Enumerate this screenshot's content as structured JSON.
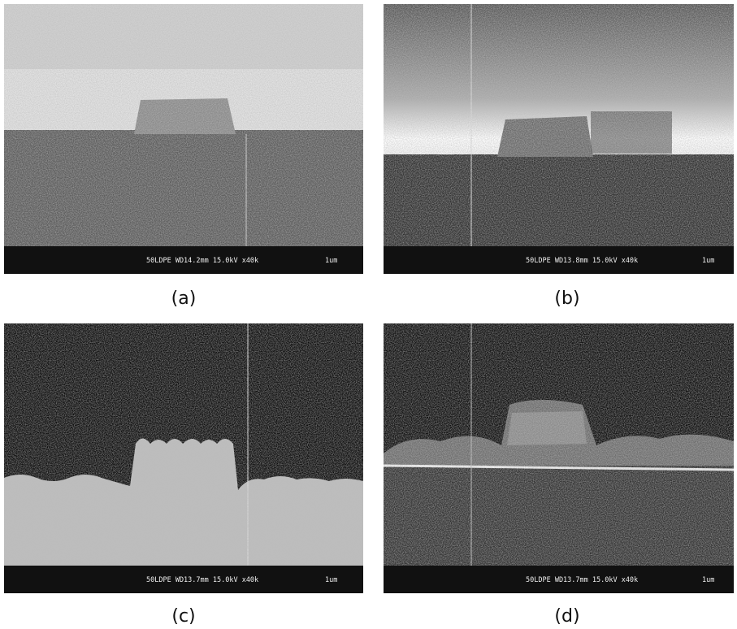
{
  "panels": [
    {
      "caption": "(a)",
      "info": "50LDPE WD14.2mm 15.0kV x40k",
      "scale": "1um"
    },
    {
      "caption": "(b)",
      "info": "50LDPE WD13.8mm 15.0kV x40k",
      "scale": "1um"
    },
    {
      "caption": "(c)",
      "info": "50LDPE WD13.7mm 15.0kV x40k",
      "scale": "1um"
    },
    {
      "caption": "(d)",
      "info": "50LDPE WD13.7mm 15.0kV x40k",
      "scale": "1um"
    }
  ]
}
